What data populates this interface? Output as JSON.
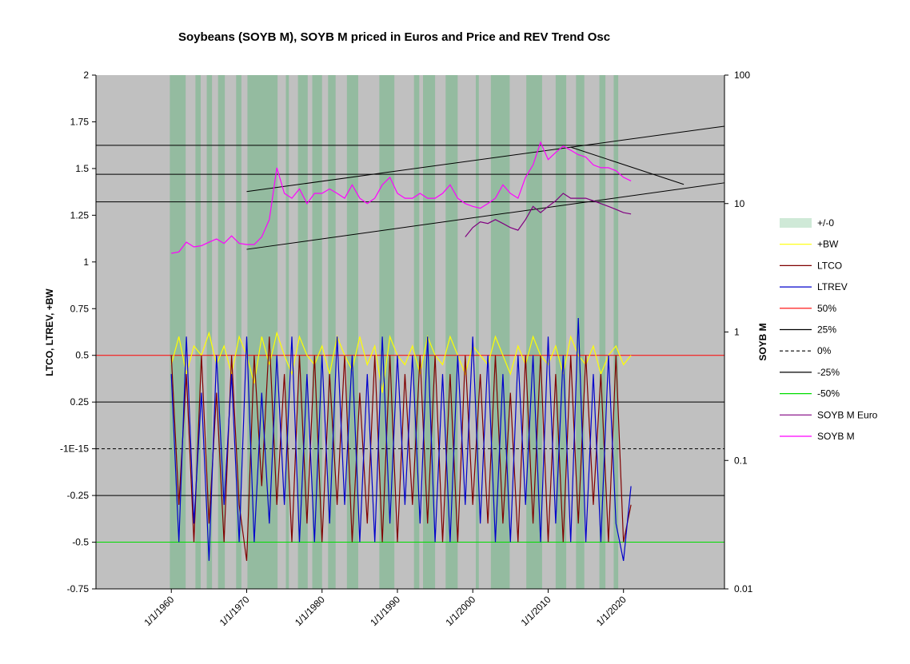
{
  "chart_data": {
    "type": "line",
    "title": "Soybeans (SOYB M), SOYB M priced in Euros and Price and REV Trend Osc",
    "y_label": "LTCO, LTREV, +BW",
    "y2_label": "SOYB M",
    "xlim": [
      1950,
      2033.4
    ],
    "xticks": [
      {
        "value": 1960,
        "label": "1/1/1960"
      },
      {
        "value": 1970,
        "label": "1/1/1970"
      },
      {
        "value": 1980,
        "label": "1/1/1980"
      },
      {
        "value": 1990,
        "label": "1/1/1990"
      },
      {
        "value": 2000,
        "label": "1/1/2000"
      },
      {
        "value": 2010,
        "label": "1/1/2010"
      },
      {
        "value": 2020,
        "label": "1/1/2020"
      }
    ],
    "ylim": [
      -0.75,
      2
    ],
    "yticks": [
      -0.75,
      -0.5,
      -0.25,
      {
        "value": 0,
        "label": "-1E-15"
      },
      0.25,
      0.5,
      0.75,
      1,
      1.25,
      1.5,
      1.75,
      2
    ],
    "y2lim": [
      0.01,
      100
    ],
    "y2ticks": [
      0.01,
      0.1,
      1,
      10,
      100
    ],
    "y2_log": true,
    "legend": "right",
    "series": [
      {
        "name": "+/-0",
        "color": "#5fb57a",
        "bands": [
          [
            1959.8,
            1961.9
          ],
          [
            1963.2,
            1963.9
          ],
          [
            1964.7,
            1965.4
          ],
          [
            1966.2,
            1967.1
          ],
          [
            1968.6,
            1969.3
          ],
          [
            1970.1,
            1974.1
          ],
          [
            1975.2,
            1975.6
          ],
          [
            1976.8,
            1978.1
          ],
          [
            1978.7,
            1980.0
          ],
          [
            1980.8,
            1981.8
          ],
          [
            1983.3,
            1984.8
          ],
          [
            1987.6,
            1989.6
          ],
          [
            1992.2,
            1992.9
          ],
          [
            1993.4,
            1995.0
          ],
          [
            1996.4,
            1998.0
          ],
          [
            2000.4,
            2000.8
          ],
          [
            2002.4,
            2004.9
          ],
          [
            2007.1,
            2009.2
          ],
          [
            2011.0,
            2012.4
          ],
          [
            2013.7,
            2014.8
          ],
          [
            2016.8,
            2017.6
          ],
          [
            2018.7,
            2019.3
          ]
        ]
      },
      {
        "name": "+BW",
        "color": "#ffff00",
        "x": [
          1960,
          1961,
          1962,
          1963,
          1964,
          1965,
          1966,
          1967,
          1968,
          1969,
          1970,
          1971,
          1972,
          1973,
          1974,
          1975,
          1976,
          1977,
          1978,
          1979,
          1980,
          1981,
          1982,
          1983,
          1984,
          1985,
          1986,
          1987,
          1988,
          1989,
          1990,
          1991,
          1992,
          1993,
          1994,
          1995,
          1996,
          1997,
          1998,
          1999,
          2000,
          2001,
          2002,
          2003,
          2004,
          2005,
          2006,
          2007,
          2008,
          2009,
          2010,
          2011,
          2012,
          2013,
          2014,
          2015,
          2016,
          2017,
          2018,
          2019,
          2020,
          2021
        ],
        "values": [
          0.45,
          0.6,
          0.4,
          0.55,
          0.5,
          0.62,
          0.45,
          0.55,
          0.4,
          0.6,
          0.5,
          0.35,
          0.6,
          0.45,
          0.62,
          0.5,
          0.4,
          0.6,
          0.5,
          0.45,
          0.55,
          0.4,
          0.6,
          0.5,
          0.42,
          0.6,
          0.45,
          0.55,
          0.3,
          0.6,
          0.5,
          0.45,
          0.55,
          0.4,
          0.6,
          0.5,
          0.45,
          0.6,
          0.5,
          0.4,
          0.55,
          0.5,
          0.45,
          0.6,
          0.5,
          0.4,
          0.55,
          0.45,
          0.6,
          0.5,
          0.45,
          0.55,
          0.4,
          0.6,
          0.5,
          0.45,
          0.55,
          0.4,
          0.5,
          0.55,
          0.45,
          0.5
        ]
      },
      {
        "name": "LTCO",
        "color": "#800000",
        "x": [
          1960,
          1961,
          1962,
          1963,
          1964,
          1965,
          1966,
          1967,
          1968,
          1969,
          1970,
          1971,
          1972,
          1973,
          1974,
          1975,
          1976,
          1977,
          1978,
          1979,
          1980,
          1981,
          1982,
          1983,
          1984,
          1985,
          1986,
          1987,
          1988,
          1989,
          1990,
          1991,
          1992,
          1993,
          1994,
          1995,
          1996,
          1997,
          1998,
          1999,
          2000,
          2001,
          2002,
          2003,
          2004,
          2005,
          2006,
          2007,
          2008,
          2009,
          2010,
          2011,
          2012,
          2013,
          2014,
          2015,
          2016,
          2017,
          2018,
          2019,
          2020,
          2021
        ],
        "values": [
          0.5,
          -0.3,
          0.4,
          -0.5,
          0.5,
          -0.4,
          0.3,
          -0.5,
          0.5,
          -0.3,
          -0.6,
          0.5,
          -0.2,
          0.6,
          -0.3,
          0.4,
          -0.5,
          0.5,
          -0.4,
          0.5,
          -0.5,
          0.4,
          -0.3,
          0.5,
          -0.5,
          0.3,
          -0.4,
          0.5,
          -0.5,
          0.5,
          -0.5,
          0.4,
          -0.3,
          0.5,
          -0.4,
          0.5,
          -0.5,
          0.4,
          -0.5,
          0.5,
          -0.3,
          0.4,
          -0.4,
          0.5,
          -0.4,
          0.3,
          -0.5,
          0.5,
          -0.4,
          0.5,
          -0.5,
          0.4,
          -0.5,
          0.5,
          -0.4,
          0.5,
          -0.3,
          0.4,
          -0.5,
          0.5,
          -0.5,
          -0.3
        ]
      },
      {
        "name": "LTREV",
        "color": "#0000cc",
        "x": [
          1960,
          1961,
          1962,
          1963,
          1964,
          1965,
          1966,
          1967,
          1968,
          1969,
          1970,
          1971,
          1972,
          1973,
          1974,
          1975,
          1976,
          1977,
          1978,
          1979,
          1980,
          1981,
          1982,
          1983,
          1984,
          1985,
          1986,
          1987,
          1988,
          1989,
          1990,
          1991,
          1992,
          1993,
          1994,
          1995,
          1996,
          1997,
          1998,
          1999,
          2000,
          2001,
          2002,
          2003,
          2004,
          2005,
          2006,
          2007,
          2008,
          2009,
          2010,
          2011,
          2012,
          2013,
          2014,
          2015,
          2016,
          2017,
          2018,
          2019,
          2020,
          2021
        ],
        "values": [
          0.4,
          -0.5,
          0.6,
          -0.4,
          0.3,
          -0.6,
          0.5,
          -0.3,
          0.4,
          -0.5,
          0.6,
          -0.5,
          0.3,
          -0.4,
          0.5,
          -0.3,
          0.6,
          -0.5,
          0.4,
          -0.5,
          0.5,
          -0.4,
          0.6,
          -0.3,
          0.5,
          -0.5,
          0.4,
          -0.5,
          0.6,
          -0.4,
          0.5,
          -0.3,
          0.5,
          -0.4,
          0.6,
          -0.5,
          0.4,
          -0.5,
          0.5,
          -0.3,
          0.6,
          -0.4,
          0.5,
          -0.5,
          0.4,
          -0.5,
          0.5,
          -0.3,
          0.5,
          -0.5,
          0.6,
          -0.4,
          0.5,
          -0.5,
          0.7,
          -0.5,
          0.4,
          -0.5,
          0.5,
          -0.4,
          -0.6,
          -0.2
        ]
      },
      {
        "name": "50%",
        "color": "#ff0000",
        "level": 0.5
      },
      {
        "name": "25%",
        "color": "#000000",
        "level": 0.25
      },
      {
        "name": "0%",
        "color": "#000000",
        "level": 0,
        "dashed": true
      },
      {
        "name": "-25%",
        "color": "#000000",
        "level": -0.25
      },
      {
        "name": "-50%",
        "color": "#00dd00",
        "level": -0.5
      },
      {
        "name": "SOYB M Euro",
        "color": "#800080",
        "axis": "y2",
        "x": [
          1999,
          2000,
          2001,
          2002,
          2003,
          2004,
          2005,
          2006,
          2007,
          2008,
          2009,
          2010,
          2011,
          2012,
          2013,
          2014,
          2015,
          2016,
          2017,
          2018,
          2019,
          2020,
          2021
        ],
        "values": [
          5.5,
          6.5,
          7.2,
          7.0,
          7.5,
          7.0,
          6.5,
          6.2,
          7.5,
          9.5,
          8.5,
          9.5,
          10.5,
          12,
          11,
          11,
          11,
          10.5,
          10,
          9.5,
          9,
          8.5,
          8.3
        ]
      },
      {
        "name": "SOYB M",
        "color": "#ff00ff",
        "axis": "y2",
        "x": [
          1960,
          1961,
          1962,
          1963,
          1964,
          1965,
          1966,
          1967,
          1968,
          1969,
          1970,
          1971,
          1972,
          1973,
          1974,
          1975,
          1976,
          1977,
          1978,
          1979,
          1980,
          1981,
          1982,
          1983,
          1984,
          1985,
          1986,
          1987,
          1988,
          1989,
          1990,
          1991,
          1992,
          1993,
          1994,
          1995,
          1996,
          1997,
          1998,
          1999,
          2000,
          2001,
          2002,
          2003,
          2004,
          2005,
          2006,
          2007,
          2008,
          2009,
          2010,
          2011,
          2012,
          2013,
          2014,
          2015,
          2016,
          2017,
          2018,
          2019,
          2020,
          2021
        ],
        "values": [
          4.1,
          4.2,
          5.0,
          4.6,
          4.7,
          5.0,
          5.3,
          4.9,
          5.6,
          4.9,
          4.8,
          4.8,
          5.5,
          7.5,
          19,
          12,
          11,
          13,
          10,
          12,
          12,
          13,
          12,
          11,
          14,
          11,
          10,
          11,
          14,
          16,
          12,
          11,
          11,
          12,
          11,
          11,
          12,
          14,
          11,
          10,
          9.5,
          9.2,
          10,
          11,
          14,
          12,
          11,
          16,
          20,
          30,
          22,
          25,
          28,
          26,
          24,
          23,
          20,
          19,
          19,
          18,
          16,
          15
        ]
      }
    ],
    "y2_levels": [
      10.3,
      16.9,
      28.4
    ],
    "trend_lines": [
      {
        "x": [
          1970,
          2033.4
        ],
        "values": [
          12.4,
          40
        ]
      },
      {
        "x": [
          1970,
          2033.4
        ],
        "values": [
          4.4,
          14.5
        ]
      },
      {
        "x": [
          2013,
          2028
        ],
        "values": [
          27.5,
          14.1
        ]
      }
    ]
  }
}
